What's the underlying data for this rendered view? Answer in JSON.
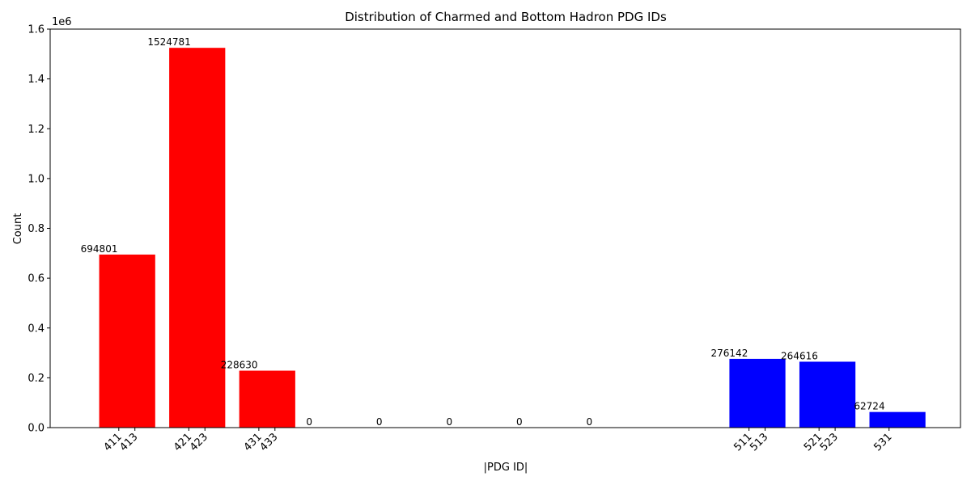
{
  "chart_data": {
    "type": "bar",
    "title": "Distribution of Charmed and Bottom Hadron PDG IDs",
    "xlabel": "|PDG ID|",
    "ylabel": "Count",
    "y_scale_label": "1e6",
    "ylim": [
      0,
      1600000
    ],
    "y_ticks": [
      0,
      200000,
      400000,
      600000,
      800000,
      1000000,
      1200000,
      1400000,
      1600000
    ],
    "y_tick_labels": [
      "0.0",
      "0.2",
      "0.4",
      "0.6",
      "0.8",
      "1.0",
      "1.2",
      "1.4",
      "1.6"
    ],
    "x_ticks": [
      {
        "label": "411",
        "pos": 1.88
      },
      {
        "label": "413",
        "pos": 2.11
      },
      {
        "label": "421",
        "pos": 2.88
      },
      {
        "label": "423",
        "pos": 3.11
      },
      {
        "label": "431",
        "pos": 3.88
      },
      {
        "label": "433",
        "pos": 4.11
      },
      {
        "label": "511",
        "pos": 10.88
      },
      {
        "label": "513",
        "pos": 11.11
      },
      {
        "label": "521",
        "pos": 11.88
      },
      {
        "label": "523",
        "pos": 12.11
      },
      {
        "label": "531",
        "pos": 12.88
      }
    ],
    "bars": [
      {
        "x": 2,
        "value": 694801,
        "label": "694801",
        "color": "#ff0000"
      },
      {
        "x": 3,
        "value": 1524781,
        "label": "1524781",
        "color": "#ff0000"
      },
      {
        "x": 4,
        "value": 228630,
        "label": "228630",
        "color": "#ff0000"
      },
      {
        "x": 5,
        "value": 0,
        "label": "0",
        "color": "#ff0000"
      },
      {
        "x": 6,
        "value": 0,
        "label": "0",
        "color": "#ff0000"
      },
      {
        "x": 7,
        "value": 0,
        "label": "0",
        "color": "#ff0000"
      },
      {
        "x": 8,
        "value": 0,
        "label": "0",
        "color": "#ff0000"
      },
      {
        "x": 9,
        "value": 0,
        "label": "0",
        "color": "#ff0000"
      },
      {
        "x": 11,
        "value": 276142,
        "label": "276142",
        "color": "#0000ff"
      },
      {
        "x": 12,
        "value": 264616,
        "label": "264616",
        "color": "#0000ff"
      },
      {
        "x": 13,
        "value": 62724,
        "label": "62724",
        "color": "#0000ff"
      }
    ],
    "grid": false,
    "colors": {
      "charm": "#ff0000",
      "bottom": "#0000ff"
    }
  }
}
